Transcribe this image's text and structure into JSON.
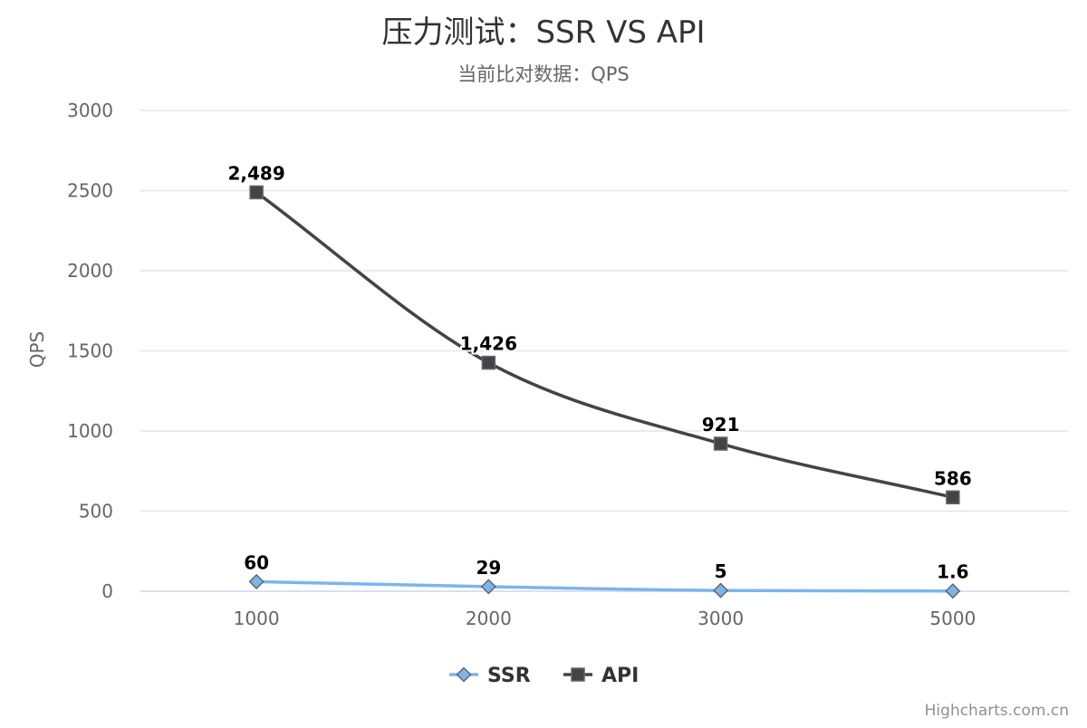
{
  "chart_data": {
    "type": "line",
    "title": "压力测试：SSR VS API",
    "subtitle": "当前比对数据：QPS",
    "ylabel": "QPS",
    "xlabel": "",
    "categories": [
      "1000",
      "2000",
      "3000",
      "5000"
    ],
    "ylim": [
      0,
      3000
    ],
    "yticks": [
      0,
      500,
      1000,
      1500,
      2000,
      2500,
      3000
    ],
    "grid": true,
    "legend_position": "bottom-center",
    "series": [
      {
        "name": "SSR",
        "values": [
          60,
          29,
          5,
          1.6
        ],
        "labels": [
          "60",
          "29",
          "5",
          "1.6"
        ],
        "color": "#7cb5ec",
        "marker": "diamond"
      },
      {
        "name": "API",
        "values": [
          2489,
          1426,
          921,
          586
        ],
        "labels": [
          "2,489",
          "1,426",
          "921",
          "586"
        ],
        "color": "#434348",
        "marker": "square"
      }
    ],
    "credits": "Highcharts.com.cn"
  }
}
